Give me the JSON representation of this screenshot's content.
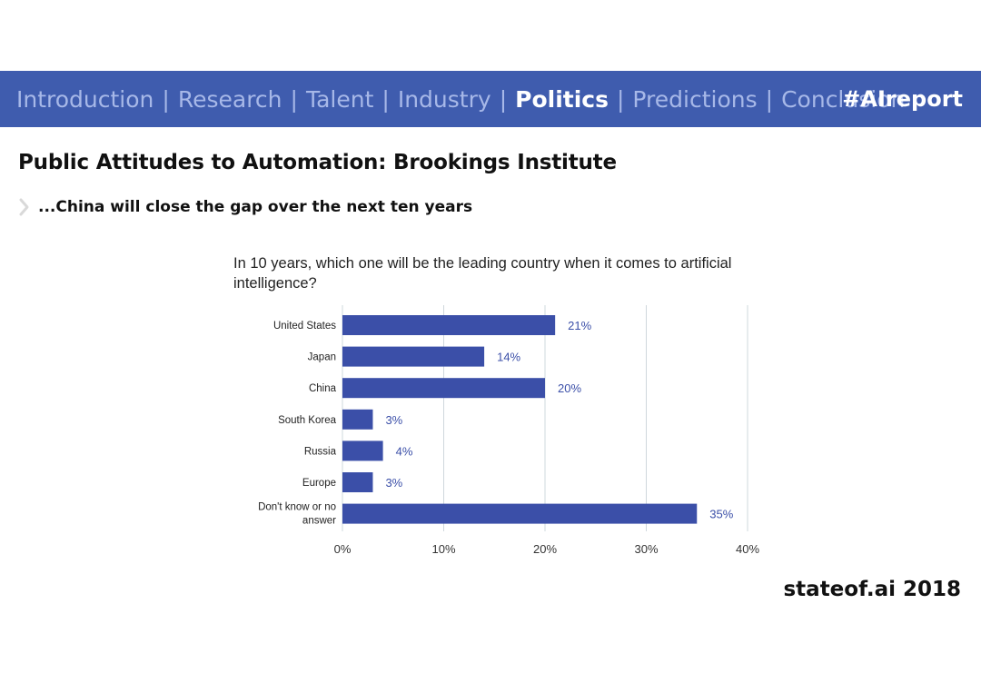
{
  "nav": {
    "items": [
      {
        "label": "Introduction",
        "active": false
      },
      {
        "label": "Research",
        "active": false
      },
      {
        "label": "Talent",
        "active": false
      },
      {
        "label": "Industry",
        "active": false
      },
      {
        "label": "Politics",
        "active": true
      },
      {
        "label": "Predictions",
        "active": false
      },
      {
        "label": "Conclusion",
        "active": false
      }
    ],
    "separator": "|",
    "hashtag": "#AIreport"
  },
  "slide": {
    "title": "Public Attitudes to Automation: Brookings Institute",
    "subtitle": "...China will close the gap over the next ten years"
  },
  "footer": {
    "brand": "stateof.ai 2018"
  },
  "colors": {
    "nav_background": "#3f5cae",
    "bar": "#3b4fa8",
    "bar_label": "#3b4fa8",
    "grid": "#cfd8dc"
  },
  "chart_data": {
    "type": "bar",
    "orientation": "horizontal",
    "title": "In 10 years, which one will be the leading country when it comes to artificial intelligence?",
    "categories": [
      "United States",
      "Japan",
      "China",
      "South Korea",
      "Russia",
      "Europe",
      "Don't know or no answer"
    ],
    "values": [
      21,
      14,
      20,
      3,
      4,
      3,
      35
    ],
    "value_labels": [
      "21%",
      "14%",
      "20%",
      "3%",
      "4%",
      "3%",
      "35%"
    ],
    "xlim": [
      0,
      40
    ],
    "x_ticks": [
      0,
      10,
      20,
      30,
      40
    ],
    "x_tick_labels": [
      "0%",
      "10%",
      "20%",
      "30%",
      "40%"
    ],
    "grid": true,
    "legend": "none"
  }
}
